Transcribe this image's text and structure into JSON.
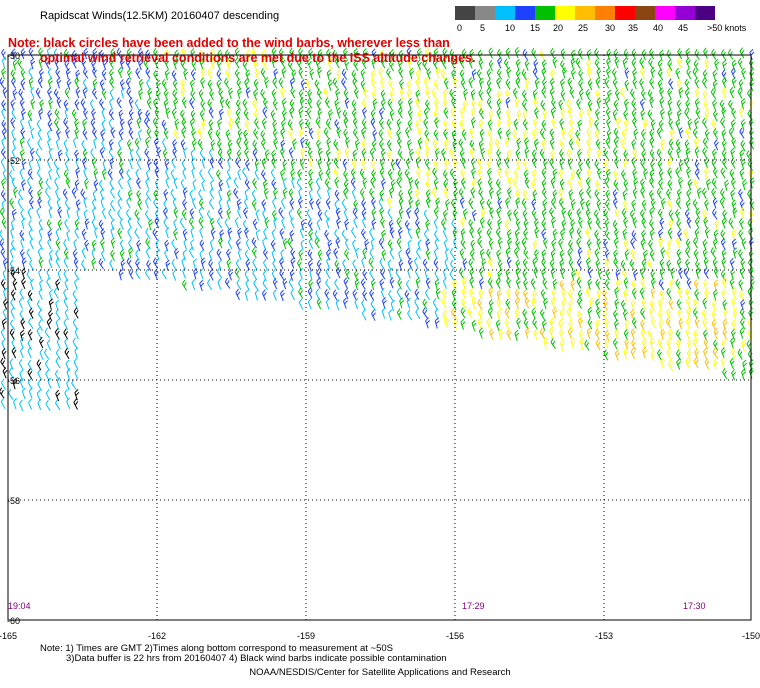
{
  "header": {
    "title": "Rapidscat Winds(12.5KM) 20160407 descending",
    "colorbar_labels": [
      "0",
      "5",
      "10",
      "15",
      "20",
      "25",
      "30",
      "35",
      "40",
      "45",
      ">50 knots"
    ],
    "colorbar_colors": [
      "#444444",
      "#888888",
      "#00bfff",
      "#1e40ff",
      "#00c000",
      "#ffff00",
      "#ffbf00",
      "#ff8000",
      "#ff0000",
      "#8b4513",
      "#ff00ff",
      "#9400d3",
      "#4b0082"
    ]
  },
  "note": {
    "line1": "Note: black circles have been added to the wind barbs, wherever less than",
    "line2": "optimal wind retrieval conditions are met due to the ISS altitude changes."
  },
  "map": {
    "lat_labels": [
      "-50",
      "-52",
      "-54",
      "-56",
      "-58",
      "-60"
    ],
    "lon_labels": [
      "-165",
      "-162",
      "-159",
      "-156",
      "-153",
      "-150"
    ],
    "time_labels": [
      "19:04",
      "17:29",
      "17:30"
    ],
    "time_color": "#800080",
    "grid": "dotted",
    "barb_colors": {
      "calm": "#00bfff",
      "light": "#1e40ff",
      "moderate": "#00c000",
      "fresh": "#ffff00",
      "strong": "#ffbf00",
      "contaminated": "#000000"
    }
  },
  "footer": {
    "line1": "Note: 1) Times are GMT 2)Times along bottom correspond to measurement at ~50S",
    "line2": "3)Data buffer is 22 hrs from 20160407 4) Black wind barbs indicate possible contamination",
    "credit": "NOAA/NESDIS/Center for Satellite Applications and Research"
  }
}
